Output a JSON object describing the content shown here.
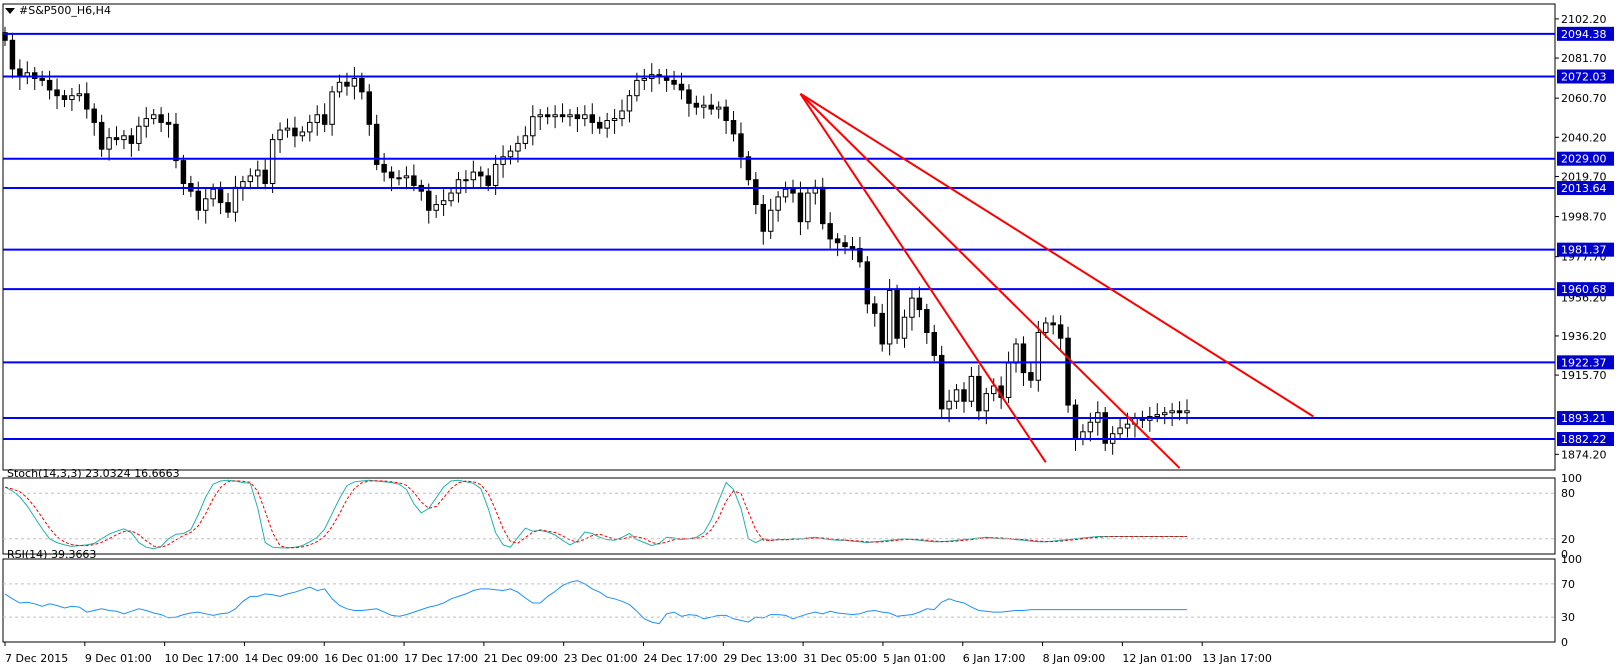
{
  "chart_title": "#S&P500_H6,H4",
  "colors": {
    "level": "#0000ff",
    "trend": "#ff0000",
    "stoch_main": "#20b2aa",
    "stoch_signal": "#ff0000",
    "rsi": "#1e90ff",
    "bull_body": "#ffffff",
    "bear_body": "#000000",
    "grid": "#c0c0c0",
    "label_bg": "#0000cc"
  },
  "chart_data": [
    {
      "type": "candlestick",
      "ylim": [
        1866,
        2110
      ],
      "y_ticks": [
        "2102.20",
        "2081.70",
        "2060.70",
        "2040.20",
        "2019.70",
        "1998.70",
        "1977.70",
        "1936.20",
        "1915.70",
        "1874.20"
      ],
      "overlapped_tick_labels": [
        "1956.20",
        "1894.70"
      ],
      "levels": [
        2094.38,
        2072.03,
        2029.0,
        2013.64,
        1981.37,
        1960.68,
        1922.37,
        1893.21,
        1882.22
      ],
      "level_labels": [
        "2094.38",
        "2072.03",
        "2029.00",
        "2013.64",
        "1981.37",
        "1960.68",
        "1922.37",
        "1893.21",
        "1882.22"
      ],
      "x_labels": [
        "7 Dec 2015",
        "9 Dec 01:00",
        "10 Dec 17:00",
        "14 Dec 09:00",
        "16 Dec 01:00",
        "17 Dec 17:00",
        "21 Dec 09:00",
        "23 Dec 01:00",
        "24 Dec 17:00",
        "29 Dec 13:00",
        "31 Dec 05:00",
        "5 Jan 01:00",
        "6 Jan 17:00",
        "8 Jan 09:00",
        "12 Jan 01:00",
        "13 Jan 17:00"
      ],
      "bar_count": 160,
      "close": [
        2091,
        2076,
        2072,
        2074,
        2071,
        2070,
        2065,
        2062,
        2060,
        2062,
        2063,
        2055,
        2048,
        2034,
        2040,
        2039,
        2041,
        2037,
        2046,
        2050,
        2052,
        2048,
        2047,
        2028,
        2016,
        2012,
        2002,
        2008,
        2013,
        2006,
        2001,
        2014,
        2017,
        2020,
        2023,
        2016,
        2039,
        2044,
        2045,
        2041,
        2043,
        2048,
        2052,
        2047,
        2064,
        2069,
        2067,
        2071,
        2064,
        2047,
        2026,
        2022,
        2019,
        2019,
        2020,
        2015,
        2012,
        2002,
        2005,
        2007,
        2011,
        2018,
        2018,
        2022,
        2020,
        2015,
        2026,
        2030,
        2033,
        2037,
        2041,
        2051,
        2052,
        2051,
        2052,
        2051,
        2052,
        2050,
        2052,
        2048,
        2045,
        2049,
        2050,
        2054,
        2062,
        2070,
        2071,
        2073,
        2072,
        2070,
        2068,
        2065,
        2058,
        2056,
        2057,
        2055,
        2056,
        2049,
        2042,
        2030,
        2018,
        2005,
        1991,
        2002,
        2009,
        2013,
        2011,
        1996,
        2011,
        2014,
        1995,
        1987,
        1985,
        1983,
        1982,
        1975,
        1953,
        1948,
        1932,
        1960,
        1935,
        1946,
        1956,
        1950,
        1938,
        1926,
        1898,
        1902,
        1908,
        1902,
        1915,
        1897,
        1906,
        1910,
        1904,
        1922,
        1932,
        1917,
        1913,
        1938,
        1943,
        1942,
        1935,
        1900,
        1882,
        1886,
        1891,
        1896,
        1880,
        1885,
        1888,
        1890,
        1893,
        1892,
        1894,
        1895,
        1896,
        1897,
        1896,
        1897
      ],
      "stoch_k": [
        88,
        83,
        75,
        63,
        48,
        33,
        20,
        15,
        12,
        10,
        11,
        12,
        14,
        20,
        26,
        30,
        33,
        28,
        15,
        9,
        7,
        10,
        20,
        26,
        27,
        32,
        52,
        75,
        92,
        96,
        97,
        96,
        94,
        93,
        60,
        15,
        9,
        8,
        8,
        9,
        11,
        16,
        22,
        33,
        53,
        73,
        90,
        95,
        96,
        97,
        96,
        95,
        94,
        92,
        85,
        66,
        54,
        60,
        74,
        88,
        96,
        97,
        95,
        93,
        86,
        60,
        28,
        12,
        9,
        22,
        34,
        30,
        31,
        29,
        25,
        18,
        12,
        17,
        29,
        27,
        22,
        19,
        18,
        22,
        27,
        19,
        15,
        11,
        14,
        22,
        21,
        19,
        20,
        22,
        28,
        45,
        70,
        94,
        85,
        60,
        20,
        15,
        20,
        18,
        19,
        19,
        20,
        20,
        21,
        22,
        20,
        19,
        18,
        18,
        17,
        16,
        15,
        16,
        17,
        18,
        19,
        20,
        19,
        18,
        17,
        16,
        16,
        17,
        18,
        19,
        20,
        21,
        22,
        21,
        20,
        20,
        19,
        18,
        17,
        16,
        16,
        17,
        18,
        19,
        20,
        21,
        22,
        23,
        23,
        23,
        23,
        23,
        23,
        23,
        23,
        23,
        23,
        23,
        23,
        23
      ],
      "rsi": [
        58,
        52,
        47,
        48,
        46,
        43,
        46,
        44,
        41,
        43,
        42,
        36,
        38,
        40,
        38,
        37,
        34,
        37,
        40,
        38,
        35,
        33,
        29,
        30,
        33,
        35,
        36,
        34,
        32,
        34,
        35,
        40,
        49,
        55,
        55,
        58,
        57,
        55,
        58,
        60,
        63,
        66,
        62,
        64,
        52,
        44,
        40,
        38,
        38,
        39,
        40,
        36,
        32,
        31,
        33,
        36,
        39,
        42,
        44,
        47,
        52,
        55,
        58,
        62,
        64,
        64,
        63,
        62,
        64,
        60,
        53,
        47,
        47,
        55,
        61,
        68,
        72,
        74,
        70,
        64,
        60,
        54,
        52,
        49,
        45,
        37,
        28,
        24,
        22,
        34,
        36,
        31,
        33,
        32,
        28,
        30,
        32,
        32,
        28,
        26,
        24,
        30,
        29,
        33,
        33,
        32,
        28,
        31,
        34,
        36,
        34,
        37,
        35,
        34,
        33,
        34,
        37,
        38,
        36,
        35,
        31,
        32,
        33,
        36,
        40,
        39,
        48,
        52,
        49,
        47,
        42,
        38,
        37,
        36,
        36,
        37,
        38,
        38,
        39,
        39,
        39,
        39,
        39,
        39,
        39,
        39,
        39,
        39,
        39,
        39,
        39,
        39,
        39,
        39,
        39,
        39,
        39,
        39,
        39,
        39
      ]
    }
  ],
  "stoch": {
    "header": "Stoch(14,3,3) 23.0324 16.6663",
    "scale_labels": [
      "100",
      "80",
      "20",
      "0"
    ]
  },
  "rsi": {
    "header": "RSI(14) 39.3663",
    "scale_labels": [
      "100",
      "70",
      "30",
      "0"
    ]
  }
}
